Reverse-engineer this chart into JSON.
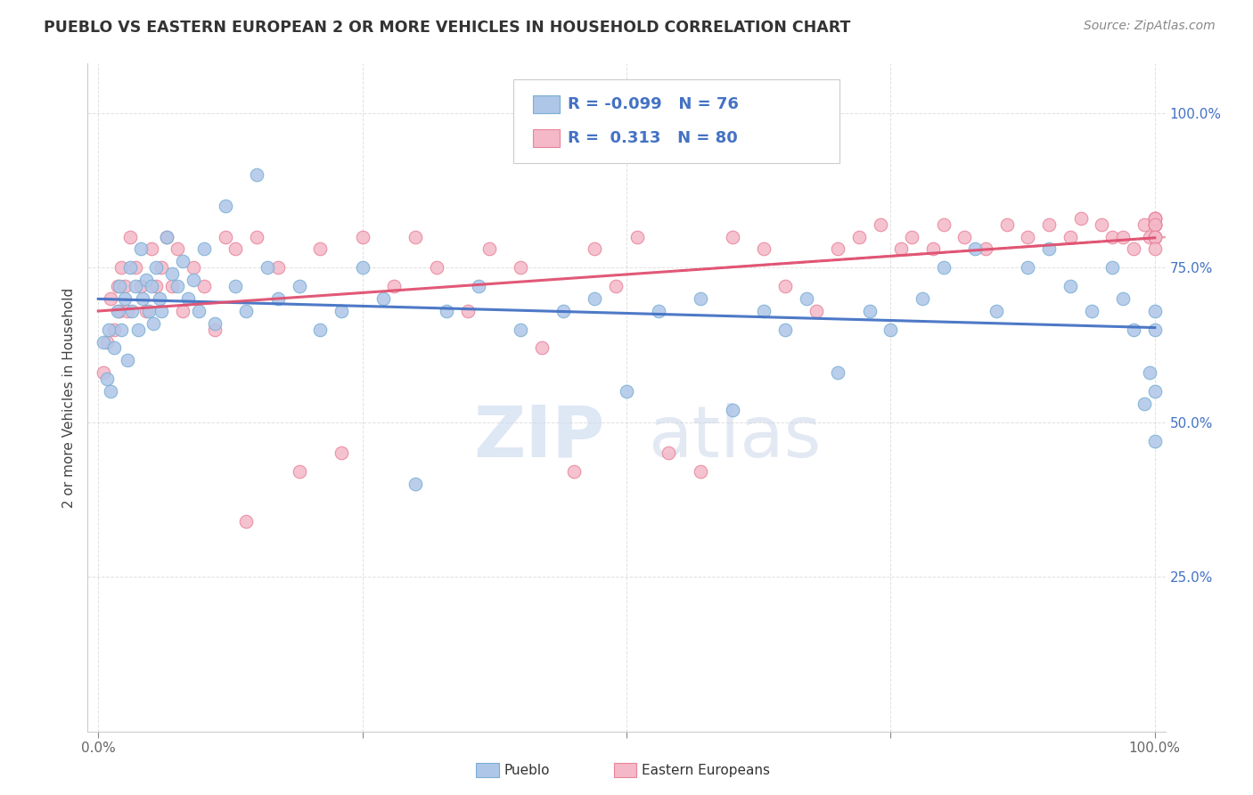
{
  "title": "PUEBLO VS EASTERN EUROPEAN 2 OR MORE VEHICLES IN HOUSEHOLD CORRELATION CHART",
  "source": "Source: ZipAtlas.com",
  "ylabel": "2 or more Vehicles in Household",
  "pueblo_color": "#aec6e8",
  "eastern_color": "#f4b8c8",
  "pueblo_edge_color": "#7aafd4",
  "eastern_edge_color": "#e8849a",
  "pueblo_line_color": "#4472c4",
  "eastern_line_color": "#e05070",
  "dashed_line_color": "#e89090",
  "ytick_color": "#4472c4",
  "watermark_color": "#c8d8ee",
  "legend_r1": "R = -0.099",
  "legend_n1": "N = 76",
  "legend_r2": "R =  0.313",
  "legend_n2": "N = 80",
  "pueblo_x": [
    0.5,
    0.8,
    1.0,
    1.2,
    1.5,
    1.8,
    2.0,
    2.2,
    2.5,
    2.8,
    3.0,
    3.2,
    3.5,
    3.8,
    4.0,
    4.2,
    4.5,
    4.8,
    5.0,
    5.2,
    5.5,
    5.8,
    6.0,
    6.5,
    7.0,
    7.5,
    8.0,
    8.5,
    9.0,
    9.5,
    10.0,
    11.0,
    12.0,
    13.0,
    14.0,
    15.0,
    16.0,
    17.0,
    19.0,
    21.0,
    23.0,
    25.0,
    27.0,
    30.0,
    33.0,
    36.0,
    40.0,
    44.0,
    47.0,
    50.0,
    53.0,
    57.0,
    60.0,
    63.0,
    65.0,
    67.0,
    70.0,
    73.0,
    75.0,
    78.0,
    80.0,
    83.0,
    85.0,
    88.0,
    90.0,
    92.0,
    94.0,
    96.0,
    97.0,
    98.0,
    99.0,
    99.5,
    100.0,
    100.0,
    100.0,
    100.0
  ],
  "pueblo_y": [
    63,
    57,
    65,
    55,
    62,
    68,
    72,
    65,
    70,
    60,
    75,
    68,
    72,
    65,
    78,
    70,
    73,
    68,
    72,
    66,
    75,
    70,
    68,
    80,
    74,
    72,
    76,
    70,
    73,
    68,
    78,
    66,
    85,
    72,
    68,
    90,
    75,
    70,
    72,
    65,
    68,
    75,
    70,
    40,
    68,
    72,
    65,
    68,
    70,
    55,
    68,
    70,
    52,
    68,
    65,
    70,
    58,
    68,
    65,
    70,
    75,
    78,
    68,
    75,
    78,
    72,
    68,
    75,
    70,
    65,
    53,
    58,
    68,
    65,
    55,
    47
  ],
  "eastern_x": [
    0.5,
    0.8,
    1.2,
    1.5,
    1.8,
    2.0,
    2.2,
    2.5,
    2.8,
    3.0,
    3.5,
    4.0,
    4.5,
    5.0,
    5.5,
    6.0,
    6.5,
    7.0,
    7.5,
    8.0,
    9.0,
    10.0,
    11.0,
    12.0,
    13.0,
    14.0,
    15.0,
    17.0,
    19.0,
    21.0,
    23.0,
    25.0,
    28.0,
    30.0,
    32.0,
    35.0,
    37.0,
    40.0,
    42.0,
    45.0,
    47.0,
    49.0,
    51.0,
    54.0,
    57.0,
    60.0,
    63.0,
    65.0,
    68.0,
    70.0,
    72.0,
    74.0,
    76.0,
    77.0,
    79.0,
    80.0,
    82.0,
    84.0,
    86.0,
    88.0,
    90.0,
    92.0,
    93.0,
    95.0,
    96.0,
    97.0,
    98.0,
    99.0,
    99.5,
    100.0,
    100.0,
    100.0,
    100.0,
    100.0,
    100.0,
    100.0,
    100.0,
    100.0,
    100.0,
    100.0
  ],
  "eastern_y": [
    58,
    63,
    70,
    65,
    72,
    68,
    75,
    72,
    68,
    80,
    75,
    72,
    68,
    78,
    72,
    75,
    80,
    72,
    78,
    68,
    75,
    72,
    65,
    80,
    78,
    34,
    80,
    75,
    42,
    78,
    45,
    80,
    72,
    80,
    75,
    68,
    78,
    75,
    62,
    42,
    78,
    72,
    80,
    45,
    42,
    80,
    78,
    72,
    68,
    78,
    80,
    82,
    78,
    80,
    78,
    82,
    80,
    78,
    82,
    80,
    82,
    80,
    83,
    82,
    80,
    80,
    78,
    82,
    80,
    82,
    82,
    83,
    80,
    82,
    83,
    80,
    83,
    82,
    80,
    78
  ]
}
